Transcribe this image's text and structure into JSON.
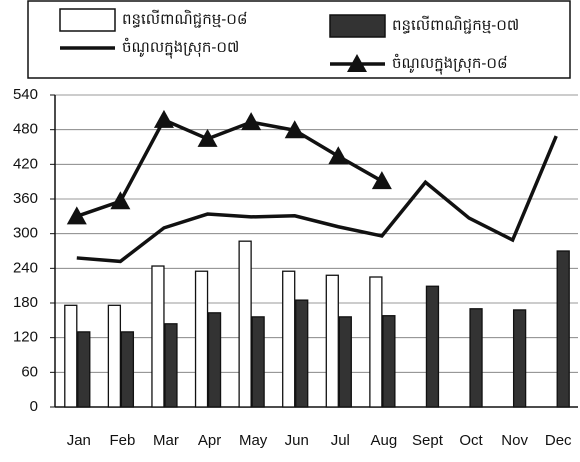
{
  "chart_data": {
    "type": "bar",
    "categories": [
      "Jan",
      "Feb",
      "Mar",
      "Apr",
      "May",
      "Jun",
      "Jul",
      "Aug",
      "Sept",
      "Oct",
      "Nov",
      "Dec"
    ],
    "series": [
      {
        "name": "ពន្ធលើពាណិជ្ជកម្ម-០៨",
        "type": "bar",
        "color": "#ffffff",
        "values": [
          176,
          176,
          244,
          235,
          287,
          235,
          228,
          225,
          null,
          null,
          null,
          null
        ]
      },
      {
        "name": "ពន្ធលើពាណិជ្ជកម្ម-០៧",
        "type": "bar",
        "color": "#333333",
        "values": [
          130,
          130,
          144,
          163,
          156,
          185,
          156,
          158,
          209,
          170,
          168,
          270
        ]
      },
      {
        "name": "ចំណូលក្នុងស្រុក-០៧",
        "type": "line",
        "color": "#111111",
        "values": [
          258,
          252,
          310,
          334,
          329,
          331,
          312,
          296,
          389,
          327,
          289,
          469
        ]
      },
      {
        "name": "ចំណូលក្នុងស្រុក-០៨",
        "type": "line",
        "color": "#111111",
        "marker": "triangle",
        "values": [
          330,
          356,
          497,
          464,
          493,
          479,
          434,
          391,
          null,
          null,
          null,
          null
        ]
      }
    ],
    "ylim": [
      0,
      540
    ],
    "yticks": [
      0,
      60,
      120,
      180,
      240,
      300,
      360,
      420,
      480,
      540
    ],
    "grid": true
  }
}
